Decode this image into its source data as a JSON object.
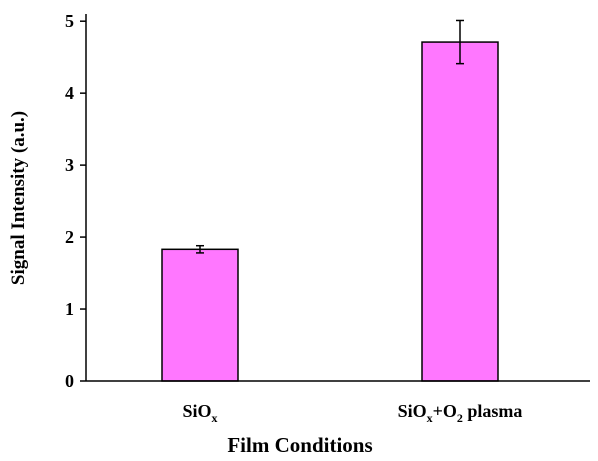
{
  "chart_data": {
    "type": "bar",
    "categories": [
      [
        "SiO",
        "x"
      ],
      [
        "SiO",
        "x",
        "+O",
        "2",
        " plasma"
      ]
    ],
    "values": [
      1.83,
      4.71
    ],
    "errors": [
      0.05,
      0.3
    ],
    "color": "#ff77ff",
    "edge_color": "#000000",
    "ylim": [
      0,
      5.1
    ],
    "yticks": [
      0,
      1,
      2,
      3,
      4,
      5
    ],
    "xlabel": "Film Conditions",
    "ylabel": "Signal Intensity (a.u.)",
    "grid": false
  }
}
